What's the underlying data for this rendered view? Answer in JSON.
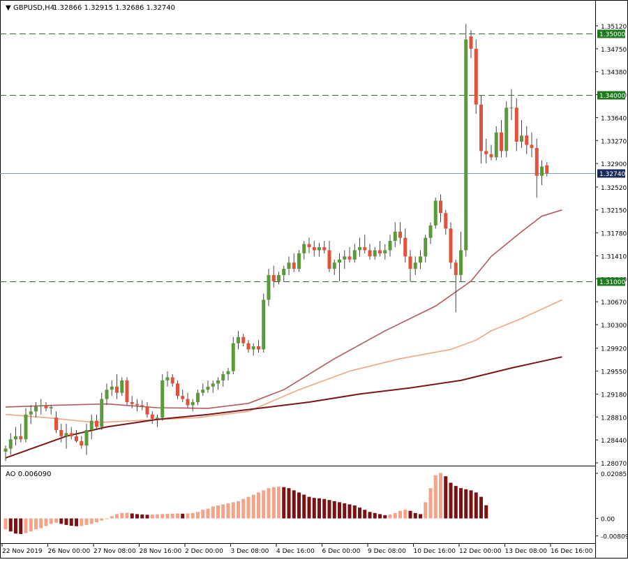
{
  "header": {
    "symbol": "GBPUSD,H4",
    "ohlc": "1.32866 1.32915 1.32686 1.32740"
  },
  "colors": {
    "bull": "#5b9a3a",
    "bear": "#e0523c",
    "wick": "#444444",
    "ma_fast": "#b5585c",
    "ma_mid": "#f0a67e",
    "ma_slow": "#7a1518",
    "ao_up": "#f2a488",
    "ao_down": "#7a1214",
    "level_line": "#2e6b35",
    "level_tag": "#1f7a1f",
    "price_tag": "#1a2a5a",
    "grid_frame": "#000000"
  },
  "chart_data": [
    {
      "type": "candlestick",
      "title": "GBPUSD,H4",
      "y_ticks": [
        "1.35120",
        "1.34750",
        "1.34380",
        "1.34010",
        "1.33640",
        "1.33270",
        "1.32900",
        "1.32520",
        "1.32150",
        "1.31780",
        "1.31410",
        "1.31040",
        "1.30670",
        "1.30300",
        "1.29920",
        "1.29550",
        "1.29180",
        "1.28810",
        "1.28440",
        "1.28070"
      ],
      "ylim": [
        1.2807,
        1.3512
      ],
      "x_ticks": [
        "22 Nov 2019",
        "26 Nov 00:00",
        "27 Nov 08:00",
        "28 Nov 16:00",
        "2 Dec 00:00",
        "3 Dec 08:00",
        "4 Dec 16:00",
        "6 Dec 00:00",
        "9 Dec 08:00",
        "10 Dec 16:00",
        "12 Dec 00:00",
        "13 Dec 08:00",
        "16 Dec 16:00"
      ],
      "levels": [
        {
          "label": "1.35000",
          "value": 1.35
        },
        {
          "label": "1.34000",
          "value": 1.34
        },
        {
          "label": "1.31000",
          "value": 1.31
        }
      ],
      "current_price": {
        "label": "1.32740",
        "value": 1.3274
      },
      "candles": [
        [
          1.2825,
          1.2835,
          1.281,
          1.283
        ],
        [
          1.283,
          1.2855,
          1.282,
          1.2845
        ],
        [
          1.2845,
          1.2865,
          1.2835,
          1.285
        ],
        [
          1.285,
          1.287,
          1.284,
          1.2845
        ],
        [
          1.2845,
          1.2895,
          1.284,
          1.2885
        ],
        [
          1.2885,
          1.29,
          1.287,
          1.289
        ],
        [
          1.289,
          1.2905,
          1.288,
          1.2898
        ],
        [
          1.2898,
          1.291,
          1.2885,
          1.29
        ],
        [
          1.29,
          1.2905,
          1.289,
          1.2895
        ],
        [
          1.2895,
          1.29,
          1.2885,
          1.2897
        ],
        [
          1.288,
          1.289,
          1.2855,
          1.286
        ],
        [
          1.286,
          1.287,
          1.284,
          1.285
        ],
        [
          1.285,
          1.287,
          1.283,
          1.2855
        ],
        [
          1.2855,
          1.2865,
          1.2845,
          1.285
        ],
        [
          1.285,
          1.286,
          1.284,
          1.2842
        ],
        [
          1.2842,
          1.285,
          1.283,
          1.2835
        ],
        [
          1.2835,
          1.287,
          1.282,
          1.286
        ],
        [
          1.286,
          1.2885,
          1.2845,
          1.2875
        ],
        [
          1.2875,
          1.2885,
          1.286,
          1.2865
        ],
        [
          1.2865,
          1.292,
          1.286,
          1.291
        ],
        [
          1.291,
          1.2935,
          1.29,
          1.2925
        ],
        [
          1.2925,
          1.294,
          1.2915,
          1.293
        ],
        [
          1.293,
          1.295,
          1.291,
          1.292
        ],
        [
          1.292,
          1.2945,
          1.2915,
          1.294
        ],
        [
          1.294,
          1.2945,
          1.29,
          1.2905
        ],
        [
          1.2905,
          1.2915,
          1.2895,
          1.2902
        ],
        [
          1.2902,
          1.291,
          1.289,
          1.29
        ],
        [
          1.29,
          1.2908,
          1.2892,
          1.2898
        ],
        [
          1.2898,
          1.2905,
          1.288,
          1.2885
        ],
        [
          1.2885,
          1.289,
          1.287,
          1.2878
        ],
        [
          1.2878,
          1.2885,
          1.2865,
          1.288
        ],
        [
          1.288,
          1.295,
          1.2875,
          1.294
        ],
        [
          1.294,
          1.2955,
          1.293,
          1.2945
        ],
        [
          1.2945,
          1.295,
          1.293,
          1.2935
        ],
        [
          1.2935,
          1.294,
          1.291,
          1.2915
        ],
        [
          1.2915,
          1.2925,
          1.2905,
          1.291
        ],
        [
          1.291,
          1.292,
          1.2895,
          1.29
        ],
        [
          1.29,
          1.291,
          1.289,
          1.2905
        ],
        [
          1.2905,
          1.2925,
          1.29,
          1.292
        ],
        [
          1.292,
          1.2935,
          1.2915,
          1.2925
        ],
        [
          1.2925,
          1.294,
          1.292,
          1.293
        ],
        [
          1.293,
          1.294,
          1.292,
          1.2935
        ],
        [
          1.2935,
          1.2945,
          1.2925,
          1.294
        ],
        [
          1.294,
          1.2955,
          1.293,
          1.295
        ],
        [
          1.295,
          1.296,
          1.294,
          1.2955
        ],
        [
          1.2955,
          1.301,
          1.295,
          1.3
        ],
        [
          1.3,
          1.302,
          1.299,
          1.301
        ],
        [
          1.301,
          1.3015,
          1.2995,
          1.3
        ],
        [
          1.3,
          1.3005,
          1.2985,
          1.299
        ],
        [
          1.299,
          1.3,
          1.298,
          1.2995
        ],
        [
          1.2995,
          1.3005,
          1.2985,
          1.299
        ],
        [
          1.299,
          1.308,
          1.2985,
          1.307
        ],
        [
          1.307,
          1.312,
          1.306,
          1.311
        ],
        [
          1.311,
          1.3125,
          1.309,
          1.31
        ],
        [
          1.31,
          1.3115,
          1.3095,
          1.311
        ],
        [
          1.311,
          1.3125,
          1.31,
          1.312
        ],
        [
          1.312,
          1.314,
          1.311,
          1.313
        ],
        [
          1.313,
          1.3145,
          1.3115,
          1.312
        ],
        [
          1.312,
          1.315,
          1.3115,
          1.3145
        ],
        [
          1.3145,
          1.3165,
          1.3135,
          1.316
        ],
        [
          1.316,
          1.317,
          1.3145,
          1.3155
        ],
        [
          1.3155,
          1.3165,
          1.314,
          1.315
        ],
        [
          1.315,
          1.3162,
          1.314,
          1.3155
        ],
        [
          1.3155,
          1.3165,
          1.3145,
          1.315
        ],
        [
          1.315,
          1.3165,
          1.3115,
          1.312
        ],
        [
          1.312,
          1.3135,
          1.311,
          1.313
        ],
        [
          1.313,
          1.3145,
          1.31,
          1.3135
        ],
        [
          1.3135,
          1.315,
          1.312,
          1.314
        ],
        [
          1.314,
          1.3155,
          1.313,
          1.3135
        ],
        [
          1.3135,
          1.316,
          1.313,
          1.315
        ],
        [
          1.315,
          1.317,
          1.314,
          1.3155
        ],
        [
          1.3155,
          1.3175,
          1.3145,
          1.315
        ],
        [
          1.315,
          1.316,
          1.3135,
          1.314
        ],
        [
          1.314,
          1.3155,
          1.3135,
          1.315
        ],
        [
          1.315,
          1.3165,
          1.314,
          1.3145
        ],
        [
          1.3145,
          1.316,
          1.3135,
          1.315
        ],
        [
          1.315,
          1.3175,
          1.314,
          1.3165
        ],
        [
          1.3165,
          1.3195,
          1.3155,
          1.318
        ],
        [
          1.318,
          1.3195,
          1.316,
          1.317
        ],
        [
          1.317,
          1.3185,
          1.313,
          1.314
        ],
        [
          1.314,
          1.315,
          1.31,
          1.312
        ],
        [
          1.312,
          1.314,
          1.311,
          1.313
        ],
        [
          1.313,
          1.315,
          1.312,
          1.314
        ],
        [
          1.314,
          1.3175,
          1.313,
          1.317
        ],
        [
          1.317,
          1.3195,
          1.316,
          1.319
        ],
        [
          1.319,
          1.3235,
          1.3185,
          1.323
        ],
        [
          1.323,
          1.324,
          1.3195,
          1.321
        ],
        [
          1.321,
          1.3215,
          1.3175,
          1.3185
        ],
        [
          1.3185,
          1.3195,
          1.312,
          1.313
        ],
        [
          1.313,
          1.3135,
          1.305,
          1.311
        ],
        [
          1.311,
          1.318,
          1.31,
          1.315
        ],
        [
          1.315,
          1.3515,
          1.314,
          1.349
        ],
        [
          1.3495,
          1.3505,
          1.346,
          1.3475
        ],
        [
          1.3475,
          1.349,
          1.337,
          1.3385
        ],
        [
          1.3385,
          1.34,
          1.329,
          1.331
        ],
        [
          1.331,
          1.333,
          1.329,
          1.3305
        ],
        [
          1.3305,
          1.332,
          1.3295,
          1.33
        ],
        [
          1.33,
          1.335,
          1.3295,
          1.334
        ],
        [
          1.334,
          1.336,
          1.33,
          1.331
        ],
        [
          1.331,
          1.339,
          1.33,
          1.338
        ],
        [
          1.338,
          1.341,
          1.336,
          1.338
        ],
        [
          1.338,
          1.3395,
          1.331,
          1.3325
        ],
        [
          1.3325,
          1.336,
          1.3315,
          1.3335
        ],
        [
          1.3335,
          1.335,
          1.3305,
          1.332
        ],
        [
          1.332,
          1.334,
          1.33,
          1.3315
        ],
        [
          1.3315,
          1.333,
          1.3235,
          1.327
        ],
        [
          1.327,
          1.3295,
          1.3255,
          1.3285
        ],
        [
          1.3287,
          1.3292,
          1.3269,
          1.3274
        ]
      ],
      "moving_averages": [
        {
          "name": "MA fast",
          "color_key": "ma_fast",
          "values": [
            [
              0,
              1.2897
            ],
            [
              10,
              1.29
            ],
            [
              20,
              1.2902
            ],
            [
              30,
              1.2896
            ],
            [
              40,
              1.2895
            ],
            [
              48,
              1.2903
            ],
            [
              55,
              1.2925
            ],
            [
              65,
              1.2975
            ],
            [
              75,
              1.302
            ],
            [
              85,
              1.306
            ],
            [
              92,
              1.31
            ],
            [
              96,
              1.314
            ],
            [
              102,
              1.318
            ],
            [
              106,
              1.3205
            ],
            [
              110,
              1.3215
            ]
          ]
        },
        {
          "name": "MA mid",
          "color_key": "ma_mid",
          "values": [
            [
              0,
              1.2885
            ],
            [
              8,
              1.288
            ],
            [
              18,
              1.2872
            ],
            [
              28,
              1.2876
            ],
            [
              38,
              1.288
            ],
            [
              48,
              1.289
            ],
            [
              58,
              1.2925
            ],
            [
              68,
              1.2955
            ],
            [
              78,
              1.2975
            ],
            [
              88,
              1.299
            ],
            [
              93,
              1.3005
            ],
            [
              96,
              1.302
            ],
            [
              102,
              1.304
            ],
            [
              110,
              1.307
            ]
          ]
        },
        {
          "name": "MA slow",
          "color_key": "ma_slow",
          "values": [
            [
              0,
              1.2815
            ],
            [
              12,
              1.285
            ],
            [
              20,
              1.2865
            ],
            [
              30,
              1.2877
            ],
            [
              40,
              1.2885
            ],
            [
              50,
              1.2895
            ],
            [
              60,
              1.2905
            ],
            [
              70,
              1.2918
            ],
            [
              80,
              1.2928
            ],
            [
              90,
              1.294
            ],
            [
              100,
              1.296
            ],
            [
              110,
              1.2978
            ]
          ]
        }
      ]
    },
    {
      "type": "bar",
      "title": "AO 0.006090",
      "y_ticks": [
        "0.020851",
        "0.00",
        "-0.008095"
      ],
      "ylim": [
        -0.0095,
        0.0215
      ],
      "values": [
        -0.005,
        -0.006,
        -0.007,
        -0.0072,
        -0.0068,
        -0.006,
        -0.005,
        -0.0045,
        -0.0035,
        -0.0025,
        -0.002,
        -0.0025,
        -0.003,
        -0.0034,
        -0.0036,
        -0.0035,
        -0.003,
        -0.0025,
        -0.0018,
        -0.001,
        0.0,
        0.001,
        0.002,
        0.0025,
        0.0026,
        0.0023,
        0.002,
        0.0018,
        0.0017,
        0.0018,
        0.0019,
        0.002,
        0.0021,
        0.0022,
        0.0023,
        0.0022,
        0.0023,
        0.0025,
        0.003,
        0.004,
        0.0045,
        0.0055,
        0.006,
        0.0065,
        0.007,
        0.0075,
        0.008,
        0.009,
        0.01,
        0.011,
        0.012,
        0.013,
        0.014,
        0.0145,
        0.0147,
        0.0145,
        0.014,
        0.013,
        0.012,
        0.011,
        0.01,
        0.0095,
        0.0093,
        0.009,
        0.0085,
        0.008,
        0.0075,
        0.007,
        0.0065,
        0.006,
        0.005,
        0.004,
        0.003,
        0.0025,
        0.002,
        0.0015,
        0.0018,
        0.0025,
        0.0035,
        0.004,
        0.0035,
        0.0025,
        0.002,
        0.0075,
        0.014,
        0.02,
        0.021,
        0.0195,
        0.0165,
        0.015,
        0.014,
        0.0135,
        0.013,
        0.012,
        0.01,
        0.0061
      ]
    }
  ]
}
